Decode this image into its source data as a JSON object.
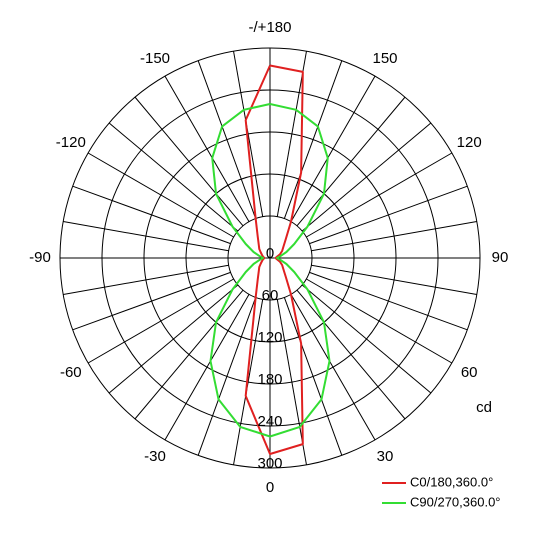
{
  "chart_data": {
    "type": "polar",
    "x": [
      -180,
      -170,
      -160,
      -150,
      -140,
      -130,
      -120,
      -110,
      -100,
      -90,
      -80,
      -70,
      -60,
      -50,
      -40,
      -30,
      -20,
      -10,
      0,
      10,
      20,
      30,
      40,
      50,
      60,
      70,
      80,
      90,
      100,
      110,
      120,
      130,
      140,
      150,
      160,
      170,
      180
    ],
    "series": [
      {
        "name": "C0/180,360.0°",
        "color": "#e02020",
        "values": [
          275,
          200,
          60,
          35,
          25,
          20,
          15,
          12,
          10,
          8,
          10,
          12,
          15,
          20,
          25,
          35,
          60,
          200,
          280,
          270,
          130,
          60,
          35,
          25,
          20,
          15,
          10,
          8,
          10,
          15,
          20,
          25,
          35,
          60,
          130,
          270,
          275
        ]
      },
      {
        "name": "C90/270,360.0°",
        "color": "#33dd33",
        "values": [
          220,
          215,
          200,
          165,
          120,
          70,
          40,
          25,
          15,
          10,
          15,
          25,
          40,
          70,
          120,
          170,
          215,
          245,
          255,
          245,
          215,
          170,
          120,
          70,
          40,
          25,
          15,
          10,
          15,
          25,
          40,
          70,
          120,
          165,
          200,
          215,
          220
        ]
      }
    ],
    "xticks": [
      -150,
      -120,
      -90,
      -60,
      -30,
      0,
      30,
      60,
      90,
      120,
      150,
      {
        "value": 180,
        "label": "-/+180"
      }
    ],
    "ylim": [
      0,
      300
    ],
    "yticks": [
      0,
      60,
      120,
      180,
      240,
      300
    ],
    "y_label": "cd"
  }
}
